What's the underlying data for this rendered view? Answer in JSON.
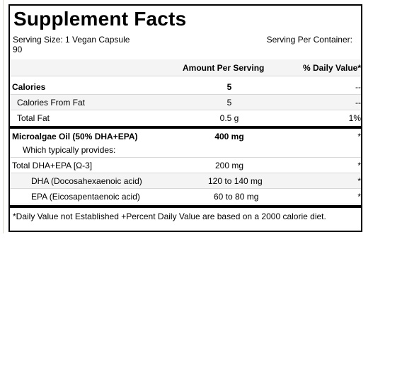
{
  "title": "Supplement Facts",
  "serving_size": "Serving Size: 1 Vegan Capsule",
  "serving_size_cont": "90",
  "servings_per_container": "Serving Per Container:",
  "header": {
    "amount": "Amount Per Serving",
    "daily_value": "% Daily Value*"
  },
  "rows": [
    {
      "name": "Calories",
      "amount": "5",
      "dv": "--"
    },
    {
      "name": "Calories From Fat",
      "amount": "5",
      "dv": "--"
    },
    {
      "name": "Total Fat",
      "amount": "0.5 g",
      "dv": "1%"
    }
  ],
  "ingredients": [
    {
      "name": "Microalgae Oil (50% DHA+EPA)",
      "amount": "400 mg",
      "dv": "*"
    },
    {
      "name": "Which typically provides:",
      "amount": "",
      "dv": ""
    },
    {
      "name": "Total DHA+EPA  [Ω-3]",
      "amount": "200 mg",
      "dv": "*"
    },
    {
      "name": "DHA (Docosahexaenoic acid)",
      "amount": "120 to 140 mg",
      "dv": "*"
    },
    {
      "name": "EPA (Eicosapentaenoic acid)",
      "amount": "60 to 80 mg",
      "dv": "*"
    }
  ],
  "footnote": "*Daily Value not Established  +Percent Daily Value are based on a 2000 calorie diet."
}
